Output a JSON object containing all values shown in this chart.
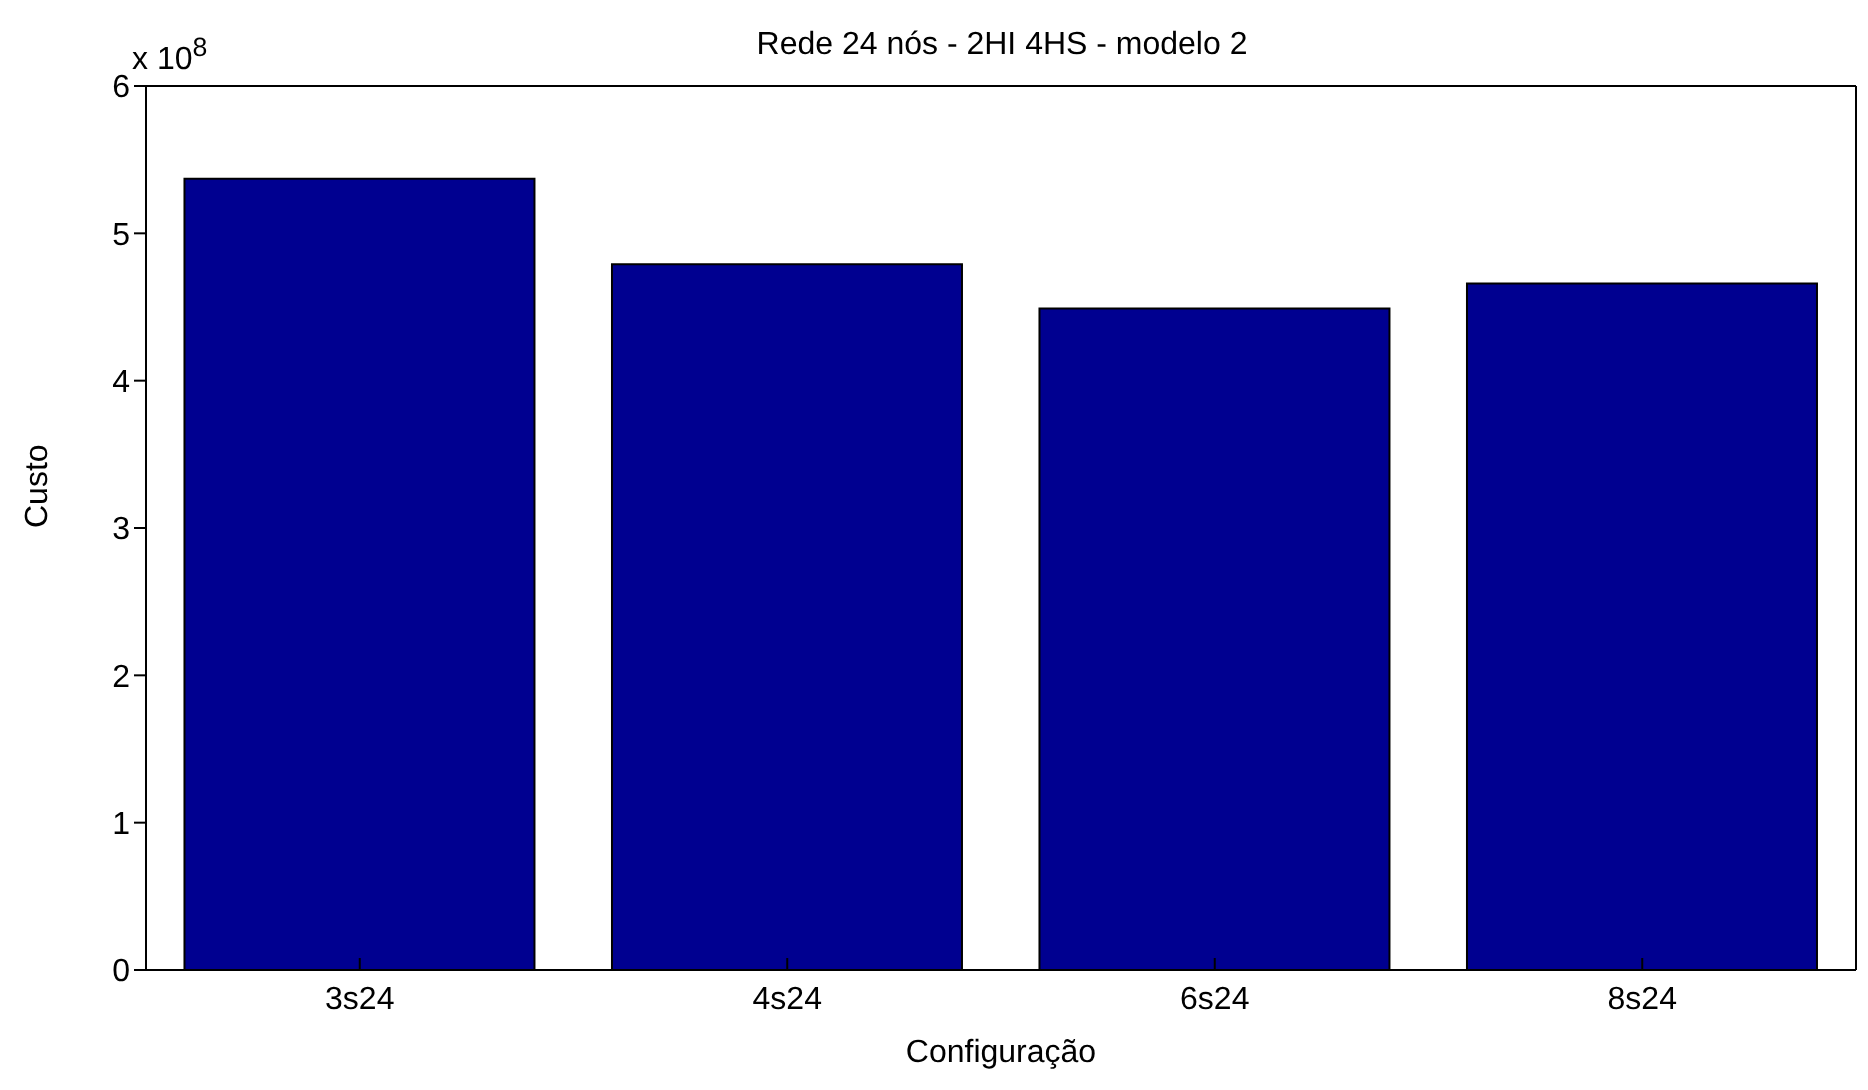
{
  "chart_data": {
    "type": "bar",
    "title": "Rede 24 nós - 2HI 4HS - modelo 2",
    "xlabel": "Configuração",
    "ylabel": "Custo",
    "categories": [
      "3s24",
      "4s24",
      "6s24",
      "8s24"
    ],
    "values": [
      5.37,
      4.79,
      4.49,
      4.66
    ],
    "color": "#000090",
    "ylim": [
      0,
      6
    ],
    "yticks": [
      0,
      1,
      2,
      3,
      4,
      5,
      6
    ],
    "annotations": [
      "x 10$^{8}$"
    ],
    "grid": false,
    "legend": false
  }
}
